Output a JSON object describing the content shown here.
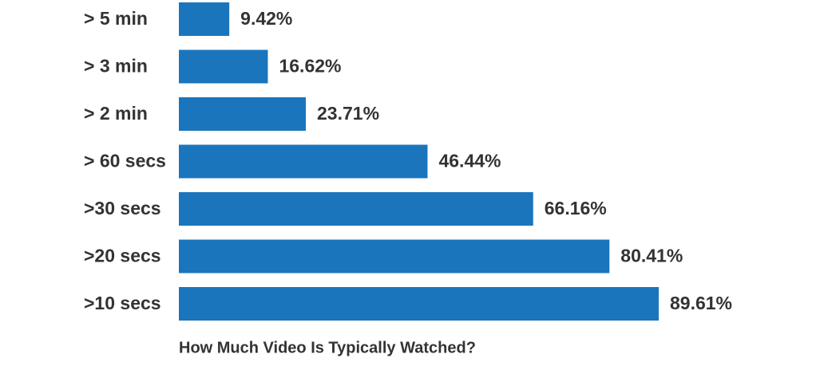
{
  "chart_data": {
    "type": "bar",
    "orientation": "horizontal",
    "title": "How Much Video Is Typically Watched?",
    "categories": [
      "> 5 min",
      "> 3 min",
      "> 2 min",
      "> 60 secs",
      ">30 secs",
      ">20 secs",
      ">10 secs"
    ],
    "values": [
      9.42,
      16.62,
      23.71,
      46.44,
      66.16,
      80.41,
      89.61
    ],
    "value_labels": [
      "9.42%",
      "16.62%",
      "23.71%",
      "46.44%",
      "66.16%",
      "80.41%",
      "89.61%"
    ],
    "color": "#1a75bc"
  }
}
